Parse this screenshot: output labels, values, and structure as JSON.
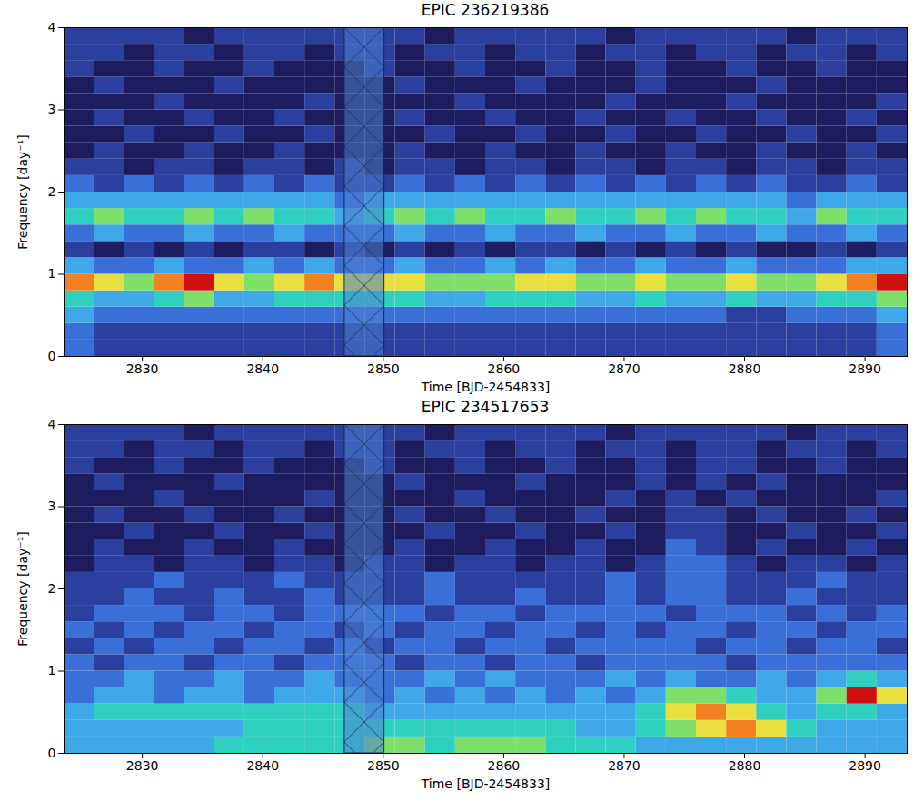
{
  "chart_data": [
    {
      "type": "heatmap",
      "title": "EPIC 236219386",
      "x_label": "Time [BJD-2454833]",
      "y_label": "Frequency [day⁻¹]",
      "xlim": [
        2823.5,
        2893.5
      ],
      "ylim": [
        0,
        4
      ],
      "xticks": [
        2830,
        2840,
        2850,
        2860,
        2870,
        2880,
        2890
      ],
      "yticks": [
        0,
        1,
        2,
        3,
        4
      ],
      "zlim": [
        0,
        9
      ],
      "gap": [
        2846.8,
        2850.1
      ],
      "x_bins": [
        2823.5,
        2826,
        2828.5,
        2831,
        2833.5,
        2836,
        2838.5,
        2841,
        2843.5,
        2846,
        2848.5,
        2851,
        2853.5,
        2856,
        2858.5,
        2861,
        2863.5,
        2866,
        2868.5,
        2871,
        2873.5,
        2876,
        2878.5,
        2881,
        2883.5,
        2886,
        2888.5,
        2891,
        2893.5
      ],
      "y_bins": [
        0,
        0.2,
        0.4,
        0.6,
        0.8,
        1.0,
        1.2,
        1.4,
        1.6,
        1.8,
        2.0,
        2.2,
        2.4,
        2.6,
        2.8,
        3.0,
        3.2,
        3.4,
        3.6,
        3.8,
        4.0
      ],
      "cells": [
        [
          3,
          2,
          2,
          2,
          2,
          2,
          2,
          2,
          2,
          2,
          2,
          2,
          2,
          2,
          2,
          2,
          2,
          2,
          2,
          2,
          2,
          2,
          2,
          2,
          2,
          2,
          2,
          3
        ],
        [
          3,
          2,
          2,
          2,
          2,
          2,
          2,
          2,
          2,
          2,
          2,
          2,
          2,
          2,
          2,
          2,
          2,
          2,
          2,
          2,
          2,
          2,
          2,
          2,
          2,
          2,
          2,
          3
        ],
        [
          4,
          3,
          3,
          3,
          3,
          3,
          3,
          3,
          3,
          3,
          3,
          3,
          3,
          3,
          3,
          3,
          3,
          3,
          3,
          3,
          3,
          3,
          2,
          2,
          3,
          3,
          3,
          4
        ],
        [
          5,
          4,
          4,
          5,
          6,
          4,
          4,
          5,
          5,
          5,
          5,
          5,
          4,
          4,
          5,
          5,
          5,
          4,
          4,
          5,
          4,
          4,
          5,
          4,
          4,
          5,
          5,
          6
        ],
        [
          8,
          7,
          6,
          8,
          9,
          7,
          6,
          7,
          8,
          7,
          7,
          7,
          6,
          6,
          6,
          7,
          7,
          6,
          6,
          7,
          6,
          6,
          7,
          6,
          6,
          7,
          8,
          9
        ],
        [
          4,
          3,
          3,
          4,
          3,
          3,
          4,
          3,
          4,
          3,
          3,
          4,
          3,
          3,
          4,
          3,
          4,
          3,
          3,
          4,
          3,
          3,
          4,
          3,
          3,
          3,
          4,
          4
        ],
        [
          2,
          1,
          2,
          1,
          2,
          1,
          2,
          2,
          1,
          2,
          1,
          2,
          1,
          2,
          1,
          2,
          2,
          1,
          2,
          1,
          2,
          1,
          2,
          1,
          1,
          2,
          1,
          2
        ],
        [
          3,
          4,
          3,
          3,
          4,
          3,
          3,
          4,
          3,
          3,
          3,
          4,
          3,
          3,
          4,
          3,
          3,
          4,
          3,
          3,
          4,
          3,
          3,
          4,
          3,
          3,
          4,
          3
        ],
        [
          5,
          6,
          5,
          5,
          6,
          5,
          6,
          5,
          5,
          4,
          5,
          6,
          5,
          6,
          5,
          5,
          6,
          5,
          5,
          6,
          5,
          6,
          5,
          5,
          4,
          6,
          5,
          5
        ],
        [
          4,
          4,
          4,
          4,
          4,
          4,
          4,
          4,
          4,
          3,
          4,
          4,
          4,
          4,
          4,
          4,
          4,
          4,
          4,
          4,
          4,
          4,
          4,
          4,
          3,
          4,
          4,
          4
        ],
        [
          3,
          2,
          3,
          2,
          3,
          2,
          3,
          2,
          3,
          2,
          2,
          3,
          2,
          3,
          2,
          3,
          2,
          3,
          2,
          3,
          2,
          3,
          2,
          3,
          2,
          2,
          3,
          2
        ],
        [
          2,
          2,
          1,
          2,
          2,
          1,
          2,
          2,
          1,
          2,
          1,
          2,
          2,
          1,
          2,
          2,
          1,
          2,
          2,
          1,
          2,
          2,
          1,
          2,
          2,
          1,
          2,
          2
        ],
        [
          1,
          2,
          1,
          1,
          2,
          1,
          1,
          2,
          1,
          1,
          1,
          2,
          1,
          1,
          2,
          1,
          1,
          2,
          1,
          1,
          2,
          1,
          1,
          2,
          1,
          1,
          2,
          1
        ],
        [
          1,
          1,
          2,
          1,
          1,
          2,
          1,
          1,
          2,
          1,
          1,
          1,
          2,
          1,
          1,
          2,
          1,
          1,
          2,
          1,
          1,
          2,
          1,
          1,
          2,
          1,
          1,
          2
        ],
        [
          1,
          2,
          1,
          1,
          2,
          1,
          1,
          2,
          1,
          1,
          1,
          2,
          1,
          1,
          2,
          1,
          1,
          2,
          1,
          1,
          2,
          1,
          1,
          2,
          1,
          1,
          2,
          1
        ],
        [
          1,
          1,
          1,
          2,
          1,
          1,
          1,
          1,
          2,
          1,
          1,
          1,
          1,
          2,
          1,
          1,
          1,
          1,
          2,
          1,
          1,
          1,
          2,
          1,
          1,
          1,
          1,
          2
        ],
        [
          1,
          2,
          1,
          1,
          1,
          2,
          1,
          1,
          1,
          1,
          1,
          2,
          1,
          1,
          1,
          2,
          1,
          1,
          1,
          2,
          1,
          1,
          1,
          2,
          1,
          1,
          1,
          1
        ],
        [
          2,
          1,
          1,
          2,
          1,
          1,
          2,
          1,
          1,
          1,
          2,
          1,
          1,
          2,
          1,
          1,
          2,
          1,
          1,
          2,
          1,
          1,
          2,
          1,
          1,
          2,
          1,
          1
        ],
        [
          2,
          2,
          1,
          2,
          2,
          1,
          2,
          2,
          1,
          2,
          2,
          1,
          2,
          2,
          1,
          2,
          2,
          1,
          2,
          2,
          1,
          2,
          2,
          1,
          2,
          2,
          1,
          2
        ],
        [
          2,
          2,
          2,
          2,
          1,
          2,
          2,
          2,
          2,
          2,
          2,
          2,
          1,
          2,
          2,
          2,
          2,
          2,
          1,
          2,
          2,
          2,
          2,
          2,
          1,
          2,
          2,
          2
        ]
      ]
    },
    {
      "type": "heatmap",
      "title": "EPIC 234517653",
      "x_label": "Time [BJD-2454833]",
      "y_label": "Frequency [day⁻¹]",
      "xlim": [
        2823.5,
        2893.5
      ],
      "ylim": [
        0,
        4
      ],
      "xticks": [
        2830,
        2840,
        2850,
        2860,
        2870,
        2880,
        2890
      ],
      "yticks": [
        0,
        1,
        2,
        3,
        4
      ],
      "zlim": [
        0,
        9
      ],
      "gap": [
        2846.8,
        2850.1
      ],
      "x_bins": [
        2823.5,
        2826,
        2828.5,
        2831,
        2833.5,
        2836,
        2838.5,
        2841,
        2843.5,
        2846,
        2848.5,
        2851,
        2853.5,
        2856,
        2858.5,
        2861,
        2863.5,
        2866,
        2868.5,
        2871,
        2873.5,
        2876,
        2878.5,
        2881,
        2883.5,
        2886,
        2888.5,
        2891,
        2893.5
      ],
      "y_bins": [
        0,
        0.2,
        0.4,
        0.6,
        0.8,
        1.0,
        1.2,
        1.4,
        1.6,
        1.8,
        2.0,
        2.2,
        2.4,
        2.6,
        2.8,
        3.0,
        3.2,
        3.4,
        3.6,
        3.8,
        4.0
      ],
      "cells": [
        [
          4,
          4,
          4,
          4,
          4,
          5,
          5,
          5,
          5,
          5,
          6,
          6,
          5,
          6,
          6,
          6,
          5,
          5,
          5,
          4,
          4,
          4,
          4,
          4,
          4,
          4,
          4,
          4
        ],
        [
          4,
          4,
          4,
          4,
          4,
          4,
          5,
          5,
          5,
          5,
          5,
          5,
          5,
          5,
          5,
          5,
          5,
          4,
          4,
          5,
          6,
          7,
          8,
          7,
          5,
          4,
          4,
          4
        ],
        [
          4,
          5,
          5,
          5,
          5,
          5,
          5,
          5,
          5,
          5,
          4,
          4,
          4,
          4,
          4,
          4,
          4,
          4,
          4,
          5,
          7,
          8,
          7,
          5,
          4,
          5,
          5,
          4
        ],
        [
          3,
          4,
          4,
          3,
          4,
          4,
          3,
          4,
          4,
          4,
          3,
          4,
          3,
          4,
          3,
          4,
          3,
          4,
          3,
          4,
          6,
          6,
          5,
          4,
          4,
          6,
          9,
          7
        ],
        [
          3,
          3,
          4,
          3,
          3,
          4,
          3,
          3,
          4,
          3,
          3,
          3,
          4,
          3,
          4,
          3,
          3,
          3,
          4,
          3,
          4,
          3,
          3,
          4,
          3,
          4,
          5,
          4
        ],
        [
          3,
          2,
          3,
          3,
          2,
          3,
          3,
          2,
          3,
          3,
          3,
          2,
          3,
          3,
          2,
          3,
          3,
          2,
          3,
          3,
          3,
          3,
          2,
          3,
          3,
          3,
          3,
          3
        ],
        [
          2,
          3,
          2,
          3,
          3,
          2,
          3,
          3,
          2,
          3,
          2,
          3,
          3,
          2,
          3,
          3,
          2,
          3,
          3,
          3,
          3,
          2,
          3,
          3,
          2,
          3,
          3,
          2
        ],
        [
          3,
          2,
          3,
          2,
          3,
          3,
          2,
          3,
          3,
          2,
          3,
          2,
          3,
          3,
          2,
          3,
          3,
          2,
          3,
          2,
          3,
          3,
          2,
          3,
          3,
          2,
          3,
          3
        ],
        [
          2,
          3,
          3,
          3,
          2,
          3,
          3,
          2,
          3,
          3,
          3,
          3,
          2,
          3,
          3,
          2,
          3,
          3,
          3,
          3,
          2,
          3,
          3,
          3,
          2,
          3,
          2,
          3
        ],
        [
          2,
          2,
          3,
          2,
          2,
          3,
          2,
          2,
          3,
          2,
          2,
          2,
          3,
          2,
          2,
          3,
          2,
          2,
          3,
          2,
          3,
          3,
          2,
          2,
          3,
          2,
          2,
          2
        ],
        [
          2,
          2,
          2,
          3,
          2,
          2,
          2,
          3,
          2,
          2,
          2,
          2,
          3,
          2,
          2,
          2,
          2,
          2,
          3,
          2,
          3,
          3,
          2,
          2,
          2,
          3,
          2,
          2
        ],
        [
          1,
          2,
          2,
          1,
          2,
          2,
          1,
          2,
          2,
          1,
          2,
          2,
          1,
          2,
          2,
          1,
          2,
          2,
          1,
          2,
          3,
          3,
          2,
          1,
          2,
          2,
          1,
          2
        ],
        [
          1,
          2,
          1,
          1,
          2,
          1,
          1,
          2,
          1,
          1,
          1,
          2,
          1,
          1,
          2,
          1,
          1,
          2,
          1,
          1,
          3,
          2,
          1,
          2,
          1,
          1,
          2,
          1
        ],
        [
          1,
          1,
          2,
          1,
          1,
          2,
          1,
          1,
          2,
          1,
          1,
          1,
          2,
          1,
          1,
          2,
          1,
          1,
          2,
          1,
          2,
          2,
          1,
          1,
          2,
          1,
          1,
          2
        ],
        [
          1,
          2,
          1,
          1,
          2,
          1,
          1,
          2,
          1,
          1,
          1,
          2,
          1,
          1,
          2,
          1,
          1,
          2,
          1,
          1,
          2,
          2,
          1,
          2,
          1,
          1,
          2,
          1
        ],
        [
          1,
          1,
          1,
          2,
          1,
          1,
          1,
          1,
          2,
          1,
          1,
          1,
          1,
          2,
          1,
          1,
          1,
          1,
          2,
          1,
          2,
          1,
          2,
          1,
          1,
          1,
          1,
          2
        ],
        [
          1,
          2,
          1,
          1,
          1,
          2,
          1,
          1,
          1,
          1,
          1,
          2,
          1,
          1,
          1,
          2,
          1,
          1,
          1,
          2,
          1,
          2,
          1,
          2,
          1,
          1,
          1,
          1
        ],
        [
          2,
          1,
          1,
          2,
          1,
          1,
          2,
          1,
          1,
          1,
          2,
          1,
          1,
          2,
          1,
          1,
          2,
          1,
          1,
          2,
          1,
          2,
          2,
          1,
          1,
          2,
          1,
          1
        ],
        [
          2,
          2,
          1,
          2,
          2,
          1,
          2,
          2,
          1,
          2,
          2,
          1,
          2,
          2,
          1,
          2,
          2,
          1,
          2,
          2,
          1,
          2,
          2,
          1,
          2,
          2,
          1,
          2
        ],
        [
          2,
          2,
          2,
          2,
          1,
          2,
          2,
          2,
          2,
          2,
          2,
          2,
          1,
          2,
          2,
          2,
          2,
          2,
          1,
          2,
          2,
          2,
          2,
          2,
          1,
          2,
          2,
          2
        ]
      ]
    }
  ]
}
